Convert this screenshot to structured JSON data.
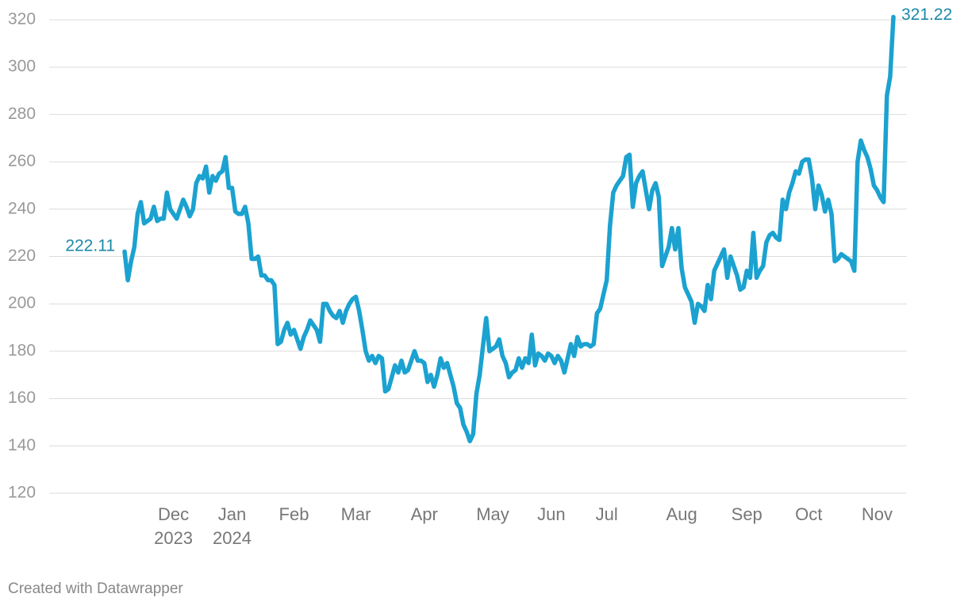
{
  "chart_data": {
    "type": "line",
    "color": "#1ba2d0",
    "label_color": "#1a8aa8",
    "grid": true,
    "ylim": [
      120,
      320
    ],
    "yticks": [
      120,
      140,
      160,
      180,
      200,
      220,
      240,
      260,
      280,
      300,
      320
    ],
    "footer": "Created with Datawrapper",
    "categories": [
      null,
      null,
      null,
      null,
      null,
      null,
      null,
      null,
      null,
      null,
      null,
      null,
      null,
      null,
      null,
      "Dec\n2023",
      null,
      null,
      null,
      null,
      null,
      null,
      null,
      null,
      null,
      null,
      null,
      null,
      null,
      null,
      null,
      null,
      null,
      "Jan\n2024",
      null,
      null,
      null,
      null,
      null,
      null,
      null,
      null,
      null,
      null,
      null,
      null,
      null,
      null,
      null,
      null,
      null,
      null,
      "Feb",
      null,
      null,
      null,
      null,
      null,
      null,
      null,
      null,
      null,
      null,
      null,
      null,
      null,
      null,
      null,
      null,
      null,
      null,
      "Mar",
      null,
      null,
      null,
      null,
      null,
      null,
      null,
      null,
      null,
      null,
      null,
      null,
      null,
      null,
      null,
      null,
      null,
      null,
      null,
      null,
      "Apr",
      null,
      null,
      null,
      null,
      null,
      null,
      null,
      null,
      null,
      null,
      null,
      null,
      null,
      null,
      null,
      null,
      null,
      null,
      null,
      null,
      "May",
      null,
      null,
      null,
      null,
      null,
      null,
      null,
      null,
      null,
      null,
      null,
      null,
      null,
      null,
      null,
      null,
      null,
      "Jun",
      null,
      null,
      null,
      null,
      null,
      null,
      null,
      null,
      null,
      null,
      null,
      null,
      null,
      null,
      null,
      null,
      "Jul",
      null,
      null,
      null,
      null,
      null,
      null,
      null,
      null,
      null,
      null,
      null,
      null,
      null,
      null,
      null,
      null,
      null,
      null,
      null,
      null,
      null,
      null,
      "Aug",
      null,
      null,
      null,
      null,
      null,
      null,
      null,
      null,
      null,
      null,
      null,
      null,
      null,
      null,
      null,
      null,
      null,
      null,
      null,
      "Sep",
      null,
      null,
      null,
      null,
      null,
      null,
      null,
      null,
      null,
      null,
      null,
      null,
      null,
      null,
      null,
      null,
      null,
      null,
      "Oct",
      null,
      null,
      null,
      null,
      null,
      null,
      null,
      null,
      null,
      null,
      null,
      null,
      null,
      null,
      null,
      null,
      null,
      null,
      null,
      null,
      "Nov",
      null,
      null,
      null,
      null,
      null
    ],
    "values": [
      222.11,
      210,
      218,
      224,
      238,
      243,
      234,
      235,
      236,
      241,
      235,
      236,
      236,
      247,
      240,
      238,
      236,
      240,
      244,
      241,
      237,
      240,
      251,
      254,
      253,
      258,
      247,
      254,
      252,
      255,
      256,
      262,
      249,
      249,
      239,
      238,
      238,
      241,
      234,
      219,
      219,
      220,
      212,
      212,
      210,
      210,
      208,
      183,
      184,
      189,
      192,
      187,
      189,
      185,
      181,
      186,
      189,
      193,
      191,
      189,
      184,
      200,
      200,
      197,
      195,
      194,
      197,
      192,
      197,
      200,
      202,
      203,
      197,
      189,
      180,
      176,
      178,
      175,
      178,
      177,
      163,
      164,
      169,
      174,
      171,
      176,
      171,
      172,
      176,
      180,
      176,
      176,
      175,
      167,
      170,
      165,
      170,
      177,
      173,
      175,
      170,
      165,
      158,
      156,
      149,
      146,
      142,
      145,
      162,
      170,
      182,
      194,
      180,
      181,
      182,
      185,
      178,
      175,
      169,
      171,
      172,
      177,
      173,
      177,
      175,
      187,
      174,
      179,
      178,
      176,
      179,
      178,
      175,
      178,
      176,
      171,
      177,
      183,
      178,
      186,
      182,
      183,
      183,
      182,
      183,
      196,
      198,
      204,
      210,
      233,
      247,
      250,
      252,
      254,
      262,
      263,
      241,
      251,
      254,
      256,
      248,
      240,
      248,
      251,
      245,
      216,
      220,
      224,
      232,
      223,
      232,
      215,
      207,
      204,
      201,
      192,
      200,
      199,
      197,
      208,
      202,
      214,
      217,
      220,
      223,
      211,
      220,
      216,
      212,
      206,
      207,
      214,
      211,
      230,
      211,
      214,
      216,
      226,
      229,
      230,
      228,
      227,
      244,
      240,
      247,
      251,
      256,
      255,
      260,
      261,
      261,
      253,
      240,
      250,
      246,
      239,
      244,
      238,
      218,
      219,
      221,
      220,
      219,
      218,
      214,
      260,
      269,
      265,
      262,
      257,
      250,
      248,
      245,
      243,
      288,
      296,
      321.22
    ]
  }
}
